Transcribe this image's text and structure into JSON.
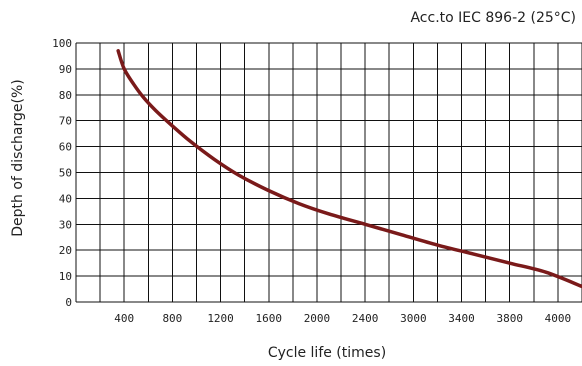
{
  "chart_data": {
    "type": "line",
    "title": "",
    "annotation": "Acc.to IEC 896-2 (25°C)",
    "xlabel": "Cycle life (times)",
    "ylabel": "Depth of discharge(%)",
    "xlim": [
      0,
      4200
    ],
    "ylim": [
      0,
      100
    ],
    "x_ticks": [
      400,
      800,
      1200,
      1600,
      2000,
      2400,
      3000,
      3400,
      3800,
      4000
    ],
    "y_ticks": [
      0,
      10,
      20,
      30,
      40,
      50,
      60,
      70,
      80,
      90,
      100
    ],
    "grid": true,
    "line_color": "#7a1a1a",
    "series": [
      {
        "x": [
          350,
          400,
          480,
          560,
          660,
          800,
          950,
          1150,
          1350,
          1600,
          1850,
          2100,
          2400,
          2700,
          3000,
          3300,
          3600,
          3900,
          4200
        ],
        "values": [
          97,
          90,
          84,
          79,
          74,
          68,
          62,
          55,
          49,
          43,
          38,
          34,
          30,
          26,
          22,
          18.5,
          15,
          11.5,
          6
        ]
      }
    ]
  }
}
